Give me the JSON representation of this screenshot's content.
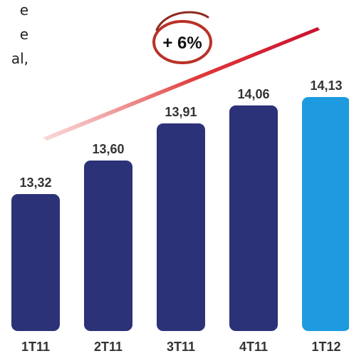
{
  "side_text": {
    "lines": [
      "e",
      "e",
      "al,"
    ]
  },
  "growth": {
    "label": "+ 6%",
    "ring_color": "#c0392b",
    "arrow_color": "#d62828"
  },
  "chart_data": {
    "type": "bar",
    "categories": [
      "1T11",
      "2T11",
      "3T11",
      "4T11",
      "1T12"
    ],
    "values": [
      13.32,
      13.6,
      13.91,
      14.06,
      14.13
    ],
    "value_labels": [
      "13,32",
      "13,60",
      "13,91",
      "14,06",
      "14,13"
    ],
    "bar_colors": [
      "#2b3278",
      "#2b3278",
      "#2b3278",
      "#2b3278",
      "#1e9be0"
    ],
    "title": "",
    "xlabel": "",
    "ylabel": "",
    "grid": false,
    "legend": "none"
  }
}
